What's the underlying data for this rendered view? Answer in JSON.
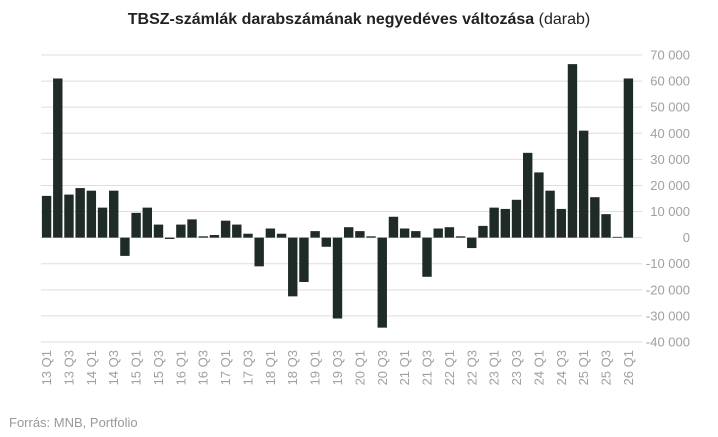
{
  "chart_data": {
    "type": "bar",
    "title": "TBSZ-számlák darabszámának negyedéves változása",
    "subtitle": "(darab)",
    "source": "Forrás: MNB, Portfolio",
    "color": "#1e2b26",
    "grid": true,
    "y_axis_side": "right",
    "categories": [
      "13 Q1",
      null,
      "13 Q3",
      null,
      "14 Q1",
      null,
      "14 Q3",
      null,
      "15 Q1",
      null,
      "15 Q3",
      null,
      "16 Q1",
      null,
      "16 Q3",
      null,
      "17 Q1",
      null,
      "17 Q3",
      null,
      "18 Q1",
      null,
      "18 Q3",
      null,
      "19 Q1",
      null,
      "19 Q3",
      null,
      "20 Q1",
      null,
      "20 Q3",
      null,
      "21 Q1",
      null,
      "21 Q3",
      null,
      "22 Q1",
      null,
      "22 Q3",
      null,
      "23 Q1",
      null,
      "23 Q3",
      null,
      "24 Q1",
      null,
      "24 Q3",
      null,
      "25 Q1",
      null,
      "25 Q3",
      null,
      "26 Q1"
    ],
    "values": [
      16000,
      61000,
      16500,
      19000,
      18000,
      11500,
      18000,
      -7000,
      9500,
      11500,
      5000,
      -500,
      5000,
      7000,
      500,
      1000,
      6500,
      5000,
      1500,
      -11000,
      3500,
      1500,
      -22500,
      -17000,
      2500,
      -3500,
      -31000,
      4000,
      2500,
      500,
      -34500,
      8000,
      3500,
      2500,
      -15000,
      3500,
      4000,
      500,
      -4000,
      4500,
      11500,
      11000,
      14500,
      32500,
      25000,
      18000,
      11000,
      66500,
      41000,
      15500,
      9000,
      300,
      61000
    ],
    "ylim": [
      -40000,
      70000
    ],
    "yticks": [
      {
        "value": -40000,
        "label": "-40 000"
      },
      {
        "value": -30000,
        "label": "-30 000"
      },
      {
        "value": -20000,
        "label": "-20 000"
      },
      {
        "value": -10000,
        "label": "-10 000"
      },
      0,
      {
        "value": 10000,
        "label": "10 000"
      },
      {
        "value": 20000,
        "label": "20 000"
      },
      {
        "value": 30000,
        "label": "30 000"
      },
      {
        "value": 40000,
        "label": "40 000"
      },
      {
        "value": 50000,
        "label": "50 000"
      },
      {
        "value": 60000,
        "label": "60 000"
      },
      {
        "value": 70000,
        "label": "70 000"
      }
    ]
  }
}
